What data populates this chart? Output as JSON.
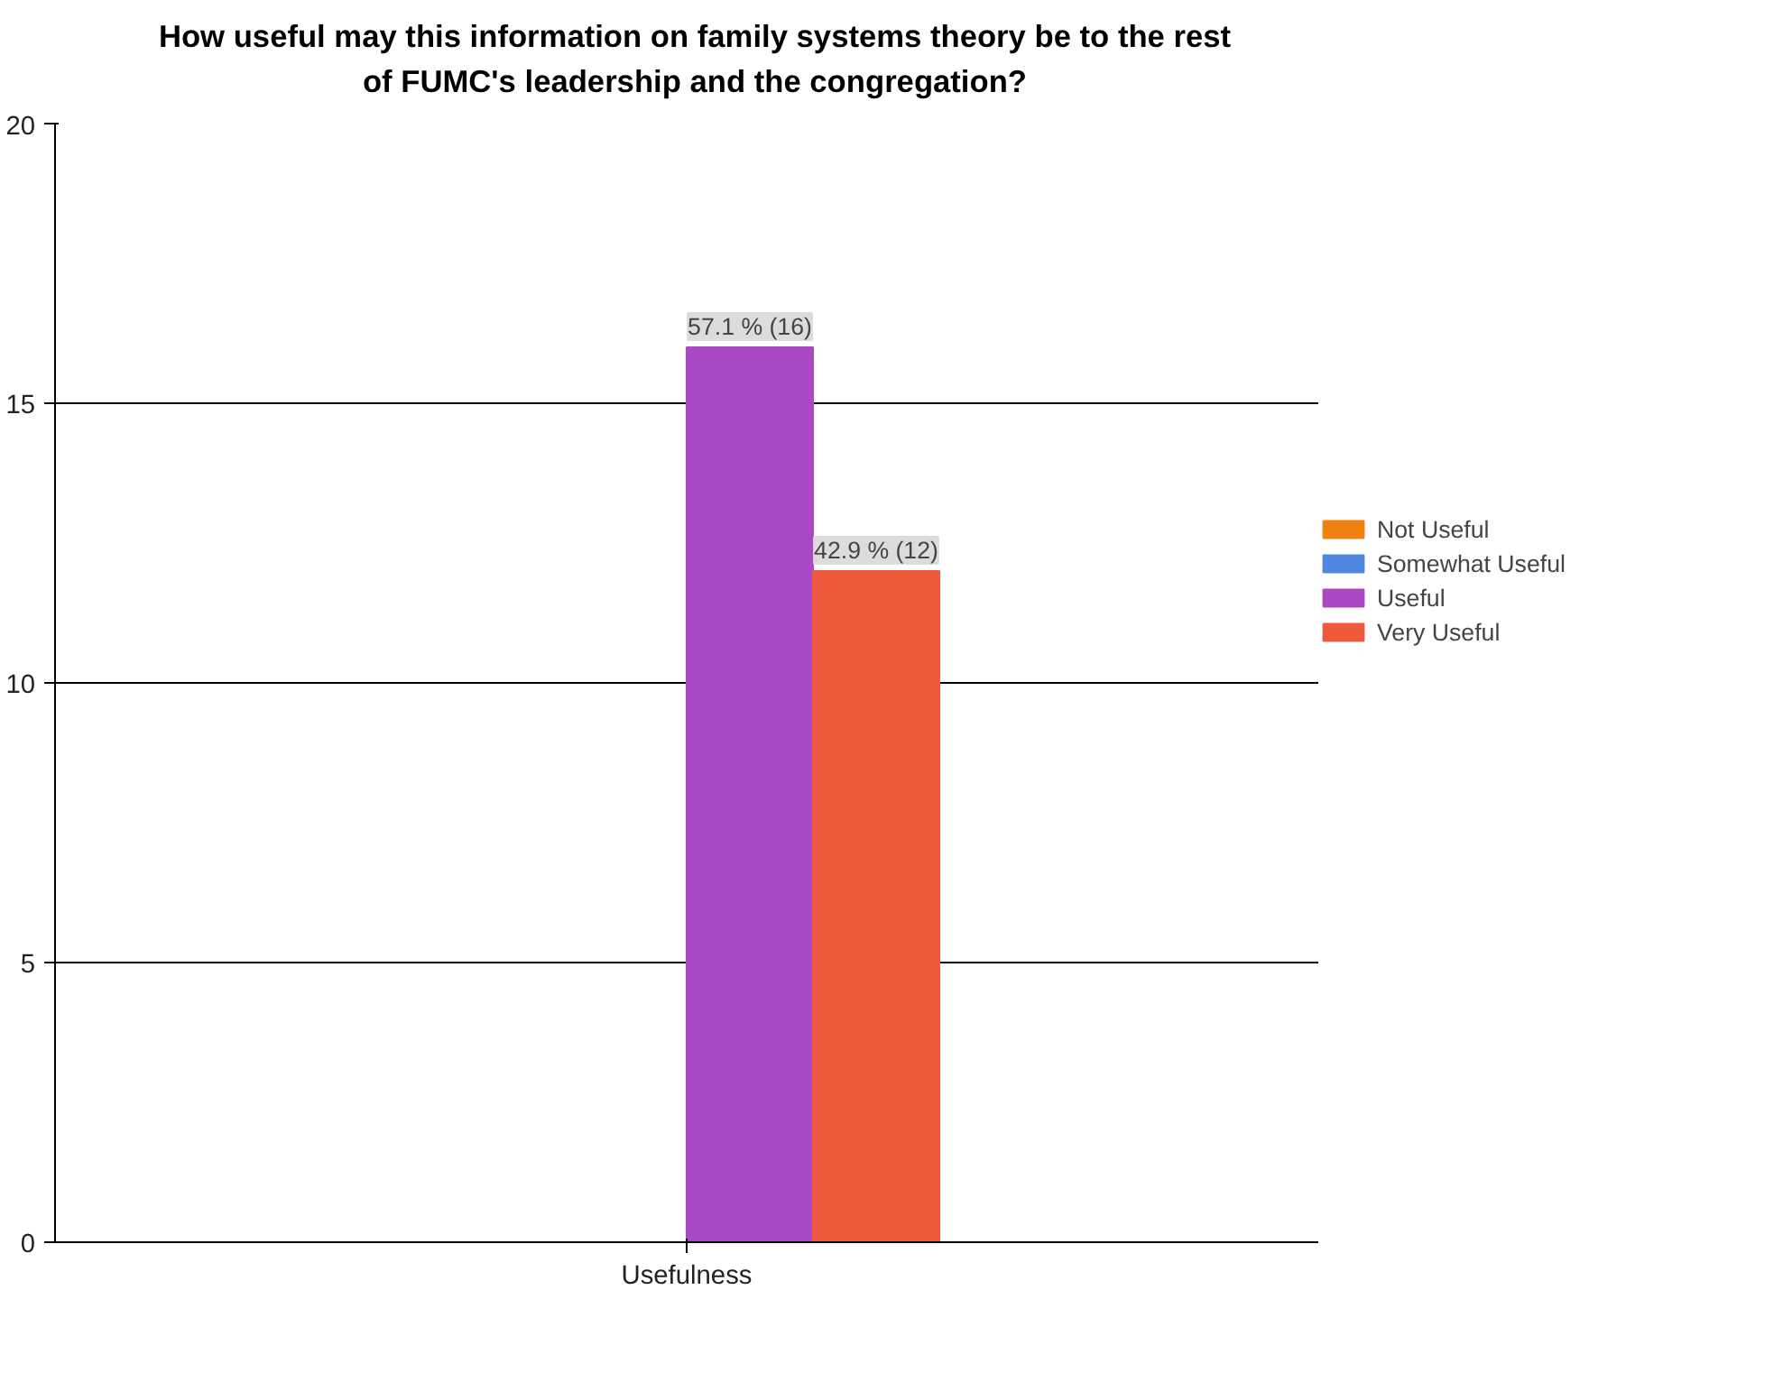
{
  "chart_data": {
    "type": "bar",
    "title": "How useful may this information on family systems theory be to the rest of FUMC's leadership and the congregation?",
    "categories": [
      "Usefulness"
    ],
    "series": [
      {
        "name": "Not Useful",
        "color": "#f08010",
        "values": [
          0
        ],
        "value_labels": [
          null
        ]
      },
      {
        "name": "Somewhat Useful",
        "color": "#4f86e0",
        "values": [
          0
        ],
        "value_labels": [
          null
        ]
      },
      {
        "name": "Useful",
        "color": "#ab48c4",
        "values": [
          16
        ],
        "value_labels": [
          "57.1 % (16)"
        ]
      },
      {
        "name": "Very Useful",
        "color": "#ee5a3c",
        "values": [
          12
        ],
        "value_labels": [
          "42.9 % (12)"
        ]
      }
    ],
    "ylim": [
      0,
      20
    ],
    "yticks": [
      0,
      5,
      10,
      15,
      20
    ],
    "grid": "y",
    "legend": "right"
  }
}
